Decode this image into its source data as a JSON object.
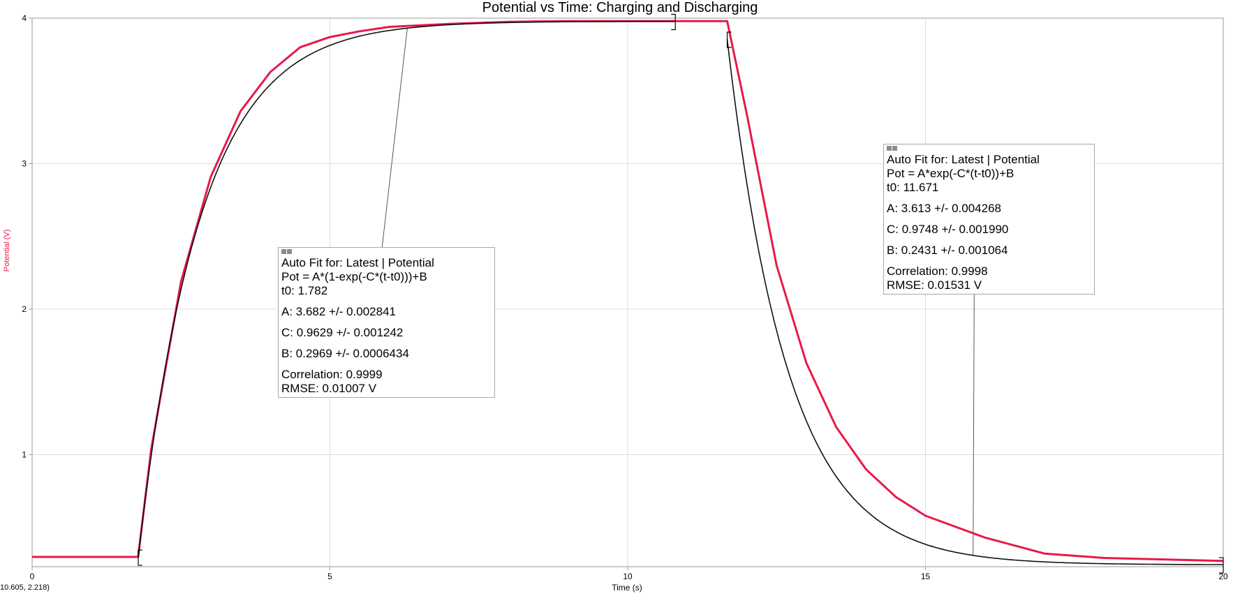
{
  "colors": {
    "data_line": "#e8194a",
    "fit_line": "#111111",
    "grid": "#dcdcdc",
    "axis": "#9a9a9a",
    "ylabel": "#e8194a"
  },
  "chart_data": {
    "type": "line",
    "title": "Potential vs Time: Charging and Discharging",
    "xlabel": "Time (s)",
    "ylabel": "Potential (V)",
    "xlim": [
      0,
      20
    ],
    "ylim": [
      0.23,
      4.0
    ],
    "xticks": [
      "0",
      "5",
      "10",
      "15",
      "20"
    ],
    "yticks": [
      "1",
      "2",
      "3",
      "4"
    ],
    "grid": true,
    "series": [
      {
        "name": "Latest | Potential",
        "x": [
          0,
          1.78,
          2.0,
          2.5,
          3.0,
          3.5,
          4.0,
          4.5,
          5.0,
          5.5,
          6.0,
          7.0,
          8.0,
          9.0,
          10.0,
          11.0,
          11.67,
          12.0,
          12.5,
          13.0,
          13.5,
          14.0,
          14.5,
          15.0,
          16.0,
          17.0,
          18.0,
          19.0,
          20.0
        ],
        "y": [
          0.297,
          0.297,
          1.04,
          2.19,
          2.91,
          3.36,
          3.63,
          3.8,
          3.87,
          3.91,
          3.94,
          3.96,
          3.975,
          3.98,
          3.98,
          3.98,
          3.98,
          3.34,
          2.3,
          1.63,
          1.19,
          0.9,
          0.71,
          0.58,
          0.43,
          0.32,
          0.29,
          0.28,
          0.27
        ]
      }
    ],
    "fits": [
      {
        "x_range": [
          1.782,
          10.8
        ],
        "model": "charge",
        "A": 3.682,
        "C": 0.9629,
        "B": 0.2969,
        "t0": 1.782,
        "callout_x": 6.3
      },
      {
        "x_range": [
          11.671,
          20.0
        ],
        "model": "discharge",
        "A": 3.613,
        "C": 0.9748,
        "B": 0.2431,
        "t0": 11.671,
        "callout_x": 15.8
      }
    ]
  },
  "fit_boxes": [
    {
      "title": "Auto Fit for: Latest | Potential",
      "equation": "Pot = A*(1-exp(-C*(t-t0)))+B",
      "t0": "t0: 1.782",
      "a": "A: 3.682 +/- 0.002841",
      "c": "C: 0.9629 +/- 0.001242",
      "b": "B: 0.2969 +/- 0.0006434",
      "correlation": "Correlation: 0.9999",
      "rmse": "RMSE: 0.01007 V"
    },
    {
      "title": "Auto Fit for: Latest | Potential",
      "equation": "Pot = A*exp(-C*(t-t0))+B",
      "t0": "t0: 11.671",
      "a": "A: 3.613 +/- 0.004268",
      "c": "C: 0.9748 +/- 0.001990",
      "b": "B: 0.2431 +/- 0.001064",
      "correlation": "Correlation: 0.9998",
      "rmse": "RMSE: 0.01531 V"
    }
  ],
  "status": {
    "coordinate_readout": "10.605, 2.218)"
  }
}
